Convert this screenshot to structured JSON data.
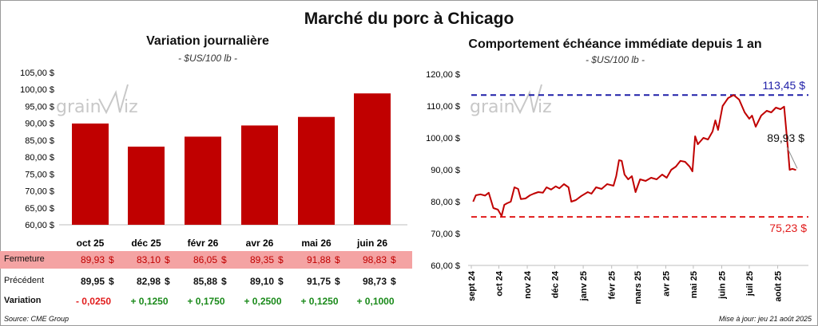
{
  "title": "Marché du porc à Chicago",
  "colors": {
    "bar": "#c00000",
    "line": "#c00000",
    "high": "#1f1fa8",
    "low": "#e11b1b",
    "pos": "#1a8a1a",
    "neg": "#e11b1b",
    "fermeture_bg": "#f4a3a3"
  },
  "watermark": {
    "left": "grain",
    "right": "iz"
  },
  "chart_data": [
    {
      "type": "bar",
      "title": "Variation journalière",
      "subtitle": "- $US/100 lb -",
      "categories": [
        "oct 25",
        "déc 25",
        "févr 26",
        "avr 26",
        "mai 26",
        "juin 26"
      ],
      "values": [
        89.93,
        83.1,
        86.05,
        89.35,
        91.88,
        98.83
      ],
      "ylim": [
        60,
        105
      ],
      "yticks": [
        "60,00 $",
        "65,00 $",
        "70,00 $",
        "75,00 $",
        "80,00 $",
        "85,00 $",
        "90,00 $",
        "95,00 $",
        "100,00 $",
        "105,00 $"
      ]
    },
    {
      "type": "line",
      "title": "Comportement échéance immédiate depuis 1 an",
      "subtitle": "- $US/100 lb -",
      "xlabels": [
        "sept 24",
        "oct 24",
        "nov 24",
        "déc 24",
        "janv 25",
        "févr 25",
        "mars 25",
        "avr 25",
        "mai 25",
        "juin 25",
        "juil 25",
        "août 25"
      ],
      "ylim": [
        60,
        120
      ],
      "yticks": [
        "60,00 $",
        "70,00 $",
        "80,00 $",
        "90,00 $",
        "100,00 $",
        "110,00 $",
        "120,00 $"
      ],
      "high_label": "113,45 $",
      "low_label": "75,23 $",
      "last_label": "89,93 $",
      "high": 113.45,
      "low": 75.23,
      "last": 89.93,
      "series": [
        {
          "x": "2024-09-03",
          "y": 80.0
        },
        {
          "x": "2024-09-06",
          "y": 82.0
        },
        {
          "x": "2024-09-11",
          "y": 82.3
        },
        {
          "x": "2024-09-16",
          "y": 81.9
        },
        {
          "x": "2024-09-20",
          "y": 82.8
        },
        {
          "x": "2024-09-25",
          "y": 78.0
        },
        {
          "x": "2024-09-30",
          "y": 77.5
        },
        {
          "x": "2024-10-04",
          "y": 75.5
        },
        {
          "x": "2024-10-07",
          "y": 79.0
        },
        {
          "x": "2024-10-10",
          "y": 79.5
        },
        {
          "x": "2024-10-14",
          "y": 80.0
        },
        {
          "x": "2024-10-18",
          "y": 84.5
        },
        {
          "x": "2024-10-22",
          "y": 84.0
        },
        {
          "x": "2024-10-25",
          "y": 80.8
        },
        {
          "x": "2024-10-30",
          "y": 81.0
        },
        {
          "x": "2024-11-04",
          "y": 82.0
        },
        {
          "x": "2024-11-08",
          "y": 82.5
        },
        {
          "x": "2024-11-13",
          "y": 83.0
        },
        {
          "x": "2024-11-18",
          "y": 82.8
        },
        {
          "x": "2024-11-22",
          "y": 84.5
        },
        {
          "x": "2024-11-27",
          "y": 83.8
        },
        {
          "x": "2024-12-02",
          "y": 84.8
        },
        {
          "x": "2024-12-06",
          "y": 84.2
        },
        {
          "x": "2024-12-11",
          "y": 85.5
        },
        {
          "x": "2024-12-16",
          "y": 84.5
        },
        {
          "x": "2024-12-19",
          "y": 80.0
        },
        {
          "x": "2024-12-24",
          "y": 80.5
        },
        {
          "x": "2024-12-30",
          "y": 81.8
        },
        {
          "x": "2025-01-06",
          "y": 83.0
        },
        {
          "x": "2025-01-10",
          "y": 82.5
        },
        {
          "x": "2025-01-15",
          "y": 84.5
        },
        {
          "x": "2025-01-21",
          "y": 84.0
        },
        {
          "x": "2025-01-27",
          "y": 85.5
        },
        {
          "x": "2025-02-03",
          "y": 85.0
        },
        {
          "x": "2025-02-06",
          "y": 88.0
        },
        {
          "x": "2025-02-09",
          "y": 93.0
        },
        {
          "x": "2025-02-12",
          "y": 92.8
        },
        {
          "x": "2025-02-15",
          "y": 88.5
        },
        {
          "x": "2025-02-19",
          "y": 87.0
        },
        {
          "x": "2025-02-23",
          "y": 88.0
        },
        {
          "x": "2025-02-27",
          "y": 83.0
        },
        {
          "x": "2025-03-04",
          "y": 87.0
        },
        {
          "x": "2025-03-10",
          "y": 86.5
        },
        {
          "x": "2025-03-16",
          "y": 87.5
        },
        {
          "x": "2025-03-22",
          "y": 87.0
        },
        {
          "x": "2025-03-28",
          "y": 88.5
        },
        {
          "x": "2025-04-02",
          "y": 87.5
        },
        {
          "x": "2025-04-07",
          "y": 90.0
        },
        {
          "x": "2025-04-12",
          "y": 91.0
        },
        {
          "x": "2025-04-17",
          "y": 92.8
        },
        {
          "x": "2025-04-22",
          "y": 92.5
        },
        {
          "x": "2025-04-27",
          "y": 91.0
        },
        {
          "x": "2025-04-30",
          "y": 89.5
        },
        {
          "x": "2025-05-03",
          "y": 100.5
        },
        {
          "x": "2025-05-06",
          "y": 98.0
        },
        {
          "x": "2025-05-12",
          "y": 100.0
        },
        {
          "x": "2025-05-17",
          "y": 99.5
        },
        {
          "x": "2025-05-22",
          "y": 102.0
        },
        {
          "x": "2025-05-25",
          "y": 105.5
        },
        {
          "x": "2025-05-28",
          "y": 102.5
        },
        {
          "x": "2025-06-02",
          "y": 110.0
        },
        {
          "x": "2025-06-08",
          "y": 112.5
        },
        {
          "x": "2025-06-14",
          "y": 113.45
        },
        {
          "x": "2025-06-20",
          "y": 112.0
        },
        {
          "x": "2025-06-26",
          "y": 108.0
        },
        {
          "x": "2025-07-01",
          "y": 106.0
        },
        {
          "x": "2025-07-04",
          "y": 107.0
        },
        {
          "x": "2025-07-08",
          "y": 103.5
        },
        {
          "x": "2025-07-14",
          "y": 107.0
        },
        {
          "x": "2025-07-20",
          "y": 108.5
        },
        {
          "x": "2025-07-25",
          "y": 108.0
        },
        {
          "x": "2025-07-30",
          "y": 109.5
        },
        {
          "x": "2025-08-04",
          "y": 109.0
        },
        {
          "x": "2025-08-08",
          "y": 109.8
        },
        {
          "x": "2025-08-12",
          "y": 97.0
        },
        {
          "x": "2025-08-14",
          "y": 90.0
        },
        {
          "x": "2025-08-17",
          "y": 90.3
        },
        {
          "x": "2025-08-21",
          "y": 89.93
        }
      ]
    }
  ],
  "table": {
    "headers": [
      "oct 25",
      "déc 25",
      "févr 26",
      "avr 26",
      "mai 26",
      "juin 26"
    ],
    "rows": [
      {
        "label": "Fermeture",
        "values": [
          "89,93",
          "83,10",
          "86,05",
          "89,35",
          "91,88",
          "98,83"
        ],
        "unit": "$"
      },
      {
        "label": "Précédent",
        "values": [
          "89,95",
          "82,98",
          "85,88",
          "89,10",
          "91,75",
          "98,73"
        ],
        "unit": "$"
      }
    ],
    "variation": {
      "label": "Variation",
      "values": [
        "- 0,0250",
        "+ 0,1250",
        "+ 0,1750",
        "+ 0,2500",
        "+ 0,1250",
        "+ 0,1000"
      ]
    }
  },
  "source": "Source: CME Group",
  "update": "Mise à jour: jeu 21 août 2025"
}
